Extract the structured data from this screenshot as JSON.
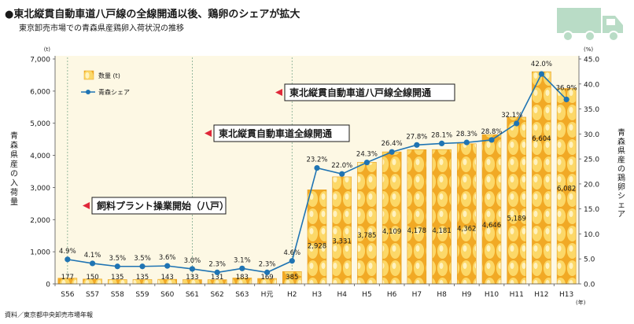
{
  "header": {
    "title": "●東北縦貫自動車道八戸線の全線開通以後、鶏卵のシェアが拡大",
    "subtitle": "東京卸売市場での青森県産鶏卵入荷状況の推移"
  },
  "source": "資料／東京都中央卸売市場年報",
  "colors": {
    "bar": "#f6c64a",
    "bar_dark": "#e8a21c",
    "line": "#1f74b3",
    "plot_bg": "#fdf8e4",
    "annotation_marker": "#e0283a",
    "truck": "#b9dcc6"
  },
  "icons": [
    "truck-icon",
    "egg-bar-icon"
  ],
  "chart_data": {
    "type": "bar",
    "categories": [
      "S56",
      "S57",
      "S58",
      "S59",
      "S60",
      "S61",
      "S62",
      "S63",
      "H元",
      "H2",
      "H3",
      "H4",
      "H5",
      "H6",
      "H7",
      "H8",
      "H9",
      "H10",
      "H11",
      "H12",
      "H13"
    ],
    "x_unit": "(年)",
    "series": [
      {
        "name": "数量 (t)",
        "type": "bar",
        "axis": "left",
        "values": [
          177,
          150,
          135,
          135,
          143,
          133,
          131,
          183,
          169,
          385,
          2928,
          3331,
          3785,
          4109,
          4178,
          4181,
          4362,
          4646,
          5189,
          6604,
          6082
        ],
        "labels": [
          "177",
          "150",
          "135",
          "135",
          "143",
          "133",
          "131",
          "183",
          "169",
          "385",
          "2,928",
          "3,331",
          "3,785",
          "4,109",
          "4,178",
          "4,181",
          "4,362",
          "4,646",
          "5,189",
          "6,604",
          "6,082"
        ]
      },
      {
        "name": "青森シェア",
        "type": "line",
        "axis": "right",
        "values": [
          4.9,
          4.1,
          3.5,
          3.5,
          3.6,
          3.0,
          2.3,
          3.1,
          2.3,
          4.6,
          23.2,
          22.0,
          24.3,
          26.4,
          27.8,
          28.1,
          28.3,
          28.8,
          32.1,
          42.0,
          36.9
        ],
        "labels": [
          "4.9%",
          "4.1%",
          "3.5%",
          "3.5%",
          "3.6%",
          "3.0%",
          "2.3%",
          "3.1%",
          "2.3%",
          "4.6%",
          "23.2%",
          "22.0%",
          "24.3%",
          "26.4%",
          "27.8%",
          "28.1%",
          "28.3%",
          "28.8%",
          "32.1%",
          "42.0%",
          "36.9%"
        ]
      }
    ],
    "y_left": {
      "label": "青森県産の入荷量",
      "unit": "(t)",
      "lim": [
        0,
        7000
      ],
      "ticks": [
        "0",
        "1,000",
        "2,000",
        "3,000",
        "4,000",
        "5,000",
        "6,000",
        "7,000"
      ]
    },
    "y_right": {
      "label": "青森県産の鶏卵シェア",
      "unit": "(%)",
      "lim": [
        0,
        45
      ],
      "ticks": [
        "0.0",
        "5.0",
        "10.0",
        "15.0",
        "20.0",
        "25.0",
        "30.0",
        "35.0",
        "40.0",
        "45.0"
      ]
    },
    "legend_position": "top-left",
    "annotations": [
      {
        "text": "飼料プラント操業開始（八戸）",
        "at_category": "S56"
      },
      {
        "text": "東北縦貫自動車道全線開通",
        "at_category": "S61"
      },
      {
        "text": "東北縦貫自動車道八戸線全線開通",
        "at_category": "H2"
      }
    ],
    "grid": false
  }
}
